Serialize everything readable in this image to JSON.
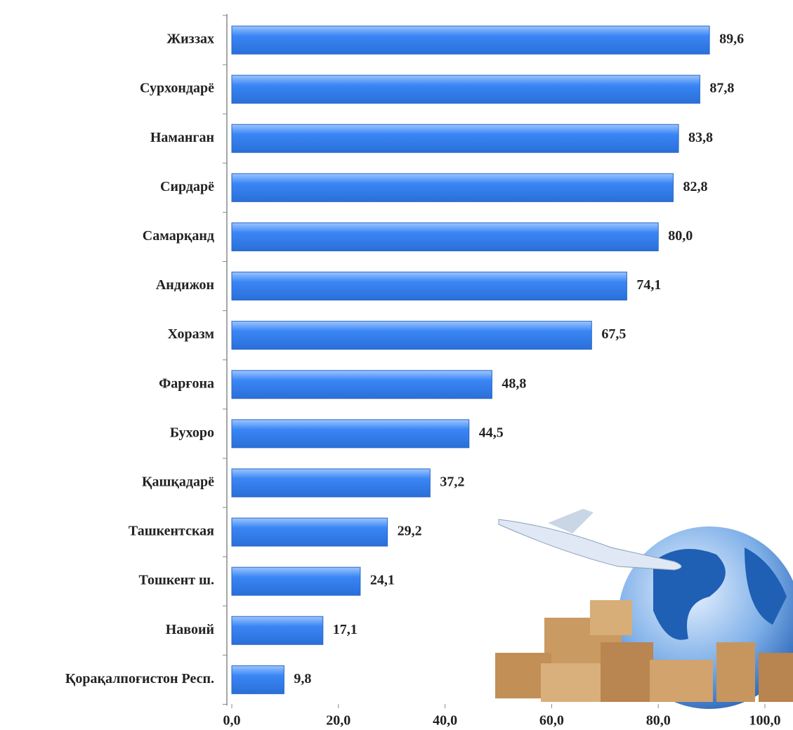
{
  "chart_data": {
    "type": "bar",
    "orientation": "horizontal",
    "categories": [
      "Жиззах",
      "Сурхондарё",
      "Наманган",
      "Сирдарё",
      "Самарқанд",
      "Андижон",
      "Хоразм",
      "Фарғона",
      "Бухоро",
      "Қашқадарё",
      "Ташкентская",
      "Тошкент ш.",
      "Навоий",
      "Қорақалпоғистон Респ."
    ],
    "values": [
      89.6,
      87.8,
      83.8,
      82.8,
      80.0,
      74.1,
      67.5,
      48.8,
      44.5,
      37.2,
      29.2,
      24.1,
      17.1,
      9.8
    ],
    "value_labels": [
      "89,6",
      "87,8",
      "83,8",
      "82,8",
      "80,0",
      "74,1",
      "67,5",
      "48,8",
      "44,5",
      "37,2",
      "29,2",
      "24,1",
      "17,1",
      "9,8"
    ],
    "color": "#3a86f5",
    "xlim": [
      0,
      100
    ],
    "xticks": [
      {
        "value": 0,
        "label": "0,0"
      },
      {
        "value": 20,
        "label": "20,0"
      },
      {
        "value": 40,
        "label": "40,0"
      },
      {
        "value": 60,
        "label": "60,0"
      },
      {
        "value": 80,
        "label": "80,0"
      },
      {
        "value": 100,
        "label": "100,0"
      }
    ]
  }
}
